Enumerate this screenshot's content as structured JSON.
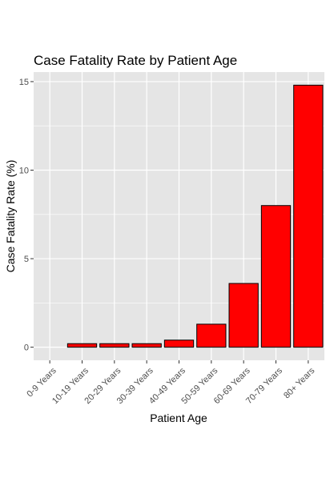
{
  "chart_data": {
    "type": "bar",
    "title": "Case Fatality Rate by Patient Age",
    "xlabel": "Patient Age",
    "ylabel": "Case Fatality Rate (%)",
    "categories": [
      "0-9 Years",
      "10-19 Years",
      "20-29 Years",
      "30-39 Years",
      "40-49 Years",
      "50-59 Years",
      "60-69 Years",
      "70-79 Years",
      "80+ Years"
    ],
    "values": [
      0,
      0.2,
      0.2,
      0.2,
      0.4,
      1.3,
      3.6,
      8.0,
      14.8
    ],
    "ylim": [
      -0.74,
      15.54
    ],
    "yticks": [
      0,
      5,
      10,
      15
    ],
    "grid": true,
    "bar_color": "#FF0000",
    "bar_outline_color": "#000000",
    "panel_background": "#E5E5E5",
    "grid_color": "#FFFFFF"
  }
}
